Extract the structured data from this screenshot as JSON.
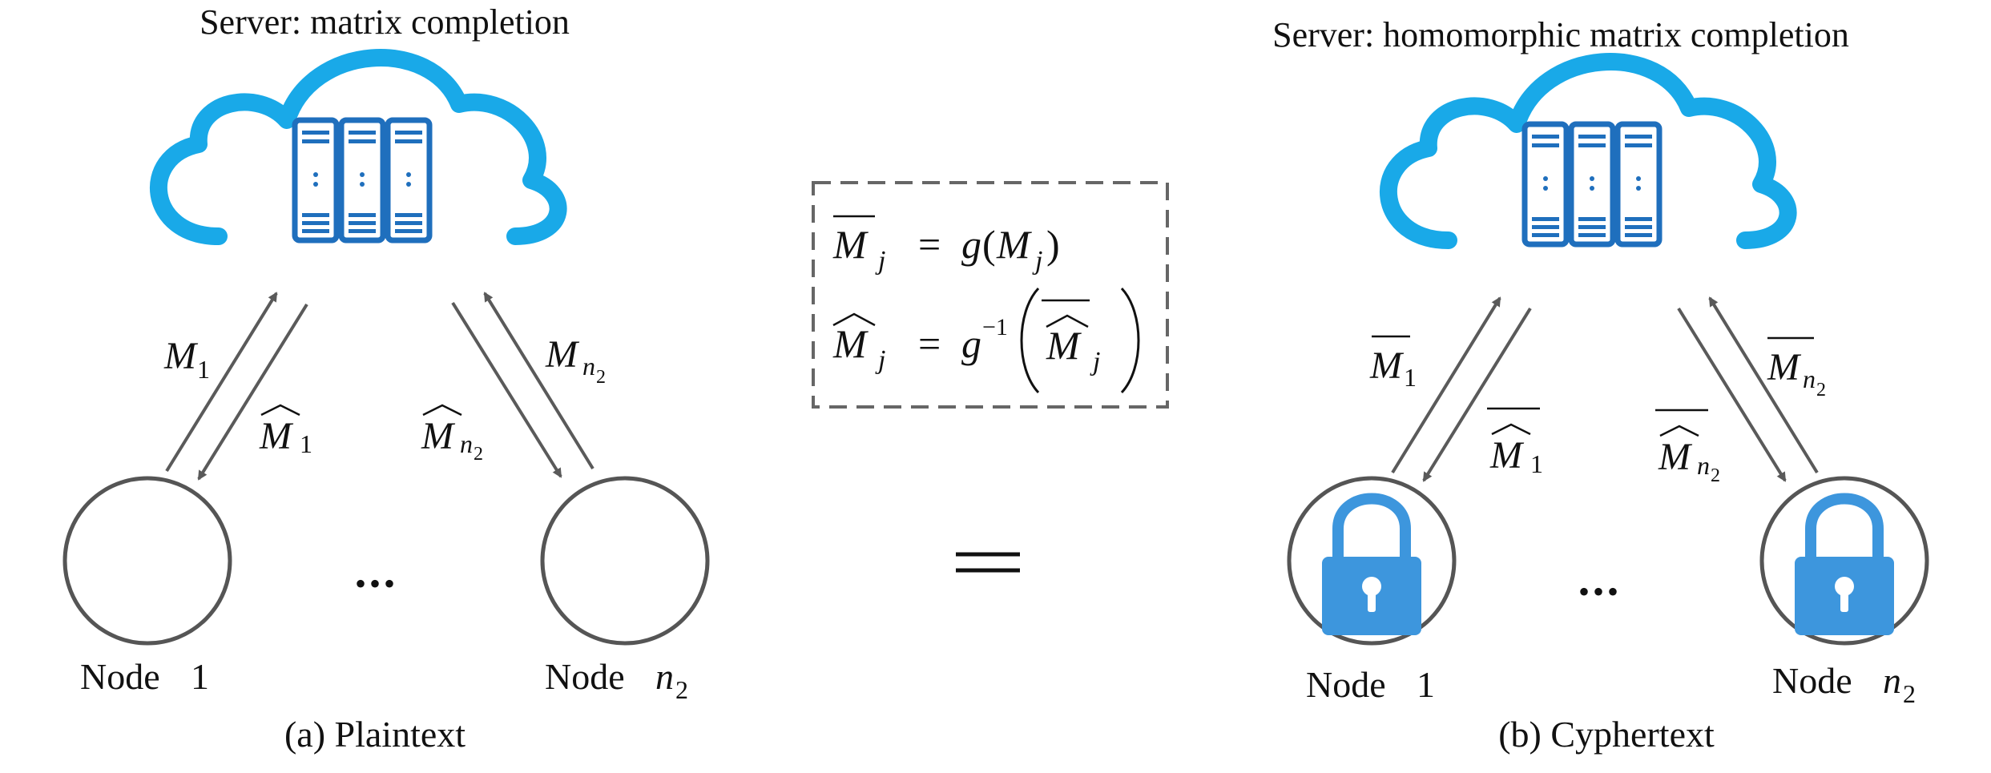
{
  "colors": {
    "cloud": "#19a9e8",
    "server": "#1f6fbd",
    "lock": "#3d96dd",
    "arrow": "#5a5a5a",
    "node_outline": "#555555",
    "box_border": "#666666",
    "text": "#111111"
  },
  "panel_a": {
    "server_title": "Server: matrix completion",
    "caption": "(a) Plaintext",
    "node_left": {
      "word": "Node",
      "index": "1"
    },
    "node_right": {
      "word": "Node",
      "index": "n",
      "sub": "2"
    },
    "ellipsis": "•••",
    "arrow_labels": {
      "up_left": {
        "base": "M",
        "sub": "1"
      },
      "down_left": {
        "base": "M",
        "sub": "1"
      },
      "up_right": {
        "base": "M",
        "sub": "n",
        "subsub": "2"
      },
      "down_right": {
        "base": "M",
        "sub": "n",
        "subsub": "2"
      }
    },
    "icons": {
      "cloud": "cloud-server-icon"
    }
  },
  "panel_b": {
    "server_title": "Server: homomorphic matrix completion",
    "caption": "(b) Cyphertext",
    "node_left": {
      "word": "Node",
      "index": "1"
    },
    "node_right": {
      "word": "Node",
      "index": "n",
      "sub": "2"
    },
    "ellipsis": "•••",
    "arrow_labels": {
      "up_left": {
        "base": "M",
        "sub": "1"
      },
      "down_left": {
        "base": "M",
        "sub": "1"
      },
      "up_right": {
        "base": "M",
        "sub": "n",
        "subsub": "2"
      },
      "down_right": {
        "base": "M",
        "sub": "n",
        "subsub": "2"
      }
    },
    "icons": {
      "cloud": "cloud-server-icon",
      "lock": "padlock-icon"
    }
  },
  "equations": {
    "eq1": {
      "lhs": "M",
      "lhs_sub": "j",
      "eq": "=",
      "rhs_fn": "g",
      "rhs_arg": "M",
      "rhs_arg_sub": "j"
    },
    "eq2": {
      "lhs": "M",
      "lhs_sub": "j",
      "eq": "=",
      "rhs_fn": "g",
      "rhs_sup": "−1",
      "rhs_arg": "M",
      "rhs_arg_sub": "j"
    }
  },
  "equals_sign": "="
}
